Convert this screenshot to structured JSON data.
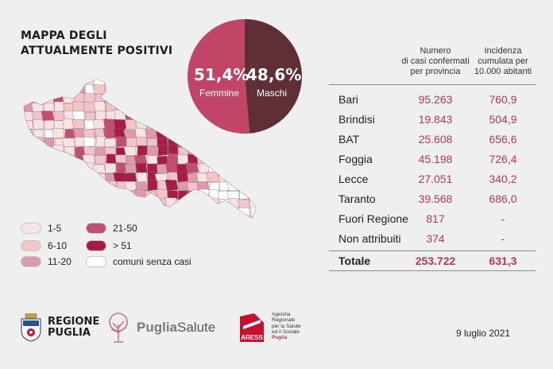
{
  "title": {
    "line1": "MAPPA DEGLI",
    "line2": "ATTUALMENTE POSITIVI"
  },
  "pie": {
    "female_pct": "51,4%",
    "female_label": "Femmine",
    "male_pct": "48,6%",
    "male_label": "Maschi",
    "female_value": 51.4,
    "male_value": 48.6,
    "female_color": "#c14566",
    "male_color": "#5e2f34"
  },
  "legend": [
    {
      "label": "1-5",
      "color": "#f8e3e3"
    },
    {
      "label": "6-10",
      "color": "#f0c4c9"
    },
    {
      "label": "11-20",
      "color": "#dc9aae"
    },
    {
      "label": "21-50",
      "color": "#c05070"
    },
    {
      "label": "> 51",
      "color": "#a51d44"
    },
    {
      "label": "comuni senza casi",
      "color": "#ffffff"
    }
  ],
  "table": {
    "header_cases": [
      "Numero",
      "di casi confermati",
      "per provincia"
    ],
    "header_incidence": [
      "Incidenza",
      "cumulata per",
      "10.000 abitanti"
    ],
    "rows": [
      {
        "name": "Bari",
        "cases": "95.263",
        "incidence": "760,9"
      },
      {
        "name": "Brindisi",
        "cases": "19.843",
        "incidence": "504,9"
      },
      {
        "name": "BAT",
        "cases": "25.608",
        "incidence": "656,6"
      },
      {
        "name": "Foggia",
        "cases": "45.198",
        "incidence": "726,4"
      },
      {
        "name": "Lecce",
        "cases": "27.051",
        "incidence": "340,2"
      },
      {
        "name": "Taranto",
        "cases": "39.568",
        "incidence": "686,0"
      },
      {
        "name": "Fuori Regione",
        "cases": "817",
        "incidence": "-"
      },
      {
        "name": "Non attribuiti",
        "cases": "374",
        "incidence": "-"
      }
    ],
    "total": {
      "name": "Totale",
      "cases": "253.722",
      "incidence": "631,3"
    }
  },
  "footer": {
    "regione_line1": "REGIONE",
    "regione_line2": "PUGLIA",
    "puglia_salute_1": "Puglia",
    "puglia_salute_2": "Salute",
    "aress_logo": "ARESS",
    "aress_text": [
      "Agenzia",
      "Regionale",
      "per la Salute",
      "ed il Sociale"
    ],
    "aress_puglia": "Puglia",
    "date": "9 luglio 2021"
  },
  "colors": {
    "accent": "#b3385c",
    "background": "#efefef"
  }
}
